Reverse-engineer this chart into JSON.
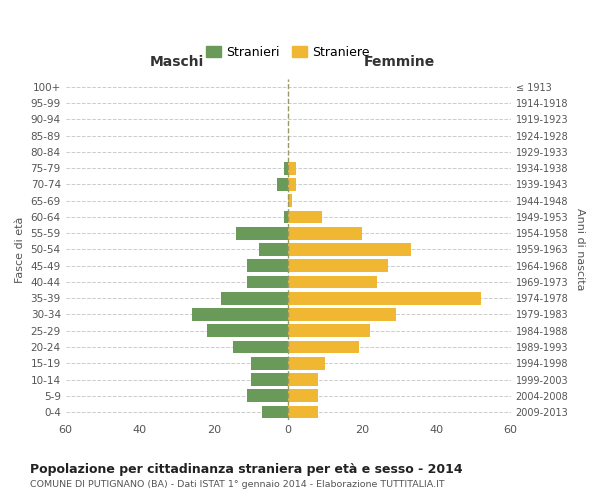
{
  "age_groups": [
    "0-4",
    "5-9",
    "10-14",
    "15-19",
    "20-24",
    "25-29",
    "30-34",
    "35-39",
    "40-44",
    "45-49",
    "50-54",
    "55-59",
    "60-64",
    "65-69",
    "70-74",
    "75-79",
    "80-84",
    "85-89",
    "90-94",
    "95-99",
    "100+"
  ],
  "birth_years": [
    "2009-2013",
    "2004-2008",
    "1999-2003",
    "1994-1998",
    "1989-1993",
    "1984-1988",
    "1979-1983",
    "1974-1978",
    "1969-1973",
    "1964-1968",
    "1959-1963",
    "1954-1958",
    "1949-1953",
    "1944-1948",
    "1939-1943",
    "1934-1938",
    "1929-1933",
    "1924-1928",
    "1919-1923",
    "1914-1918",
    "≤ 1913"
  ],
  "maschi": [
    7,
    11,
    10,
    10,
    15,
    22,
    26,
    18,
    11,
    11,
    8,
    14,
    1,
    0,
    3,
    1,
    0,
    0,
    0,
    0,
    0
  ],
  "femmine": [
    8,
    8,
    8,
    10,
    19,
    22,
    29,
    52,
    24,
    27,
    33,
    20,
    9,
    1,
    2,
    2,
    0,
    0,
    0,
    0,
    0
  ],
  "maschi_color": "#6a9a5a",
  "femmine_color": "#f0b832",
  "title": "Popolazione per cittadinanza straniera per età e sesso - 2014",
  "subtitle": "COMUNE DI PUTIGNANO (BA) - Dati ISTAT 1° gennaio 2014 - Elaborazione TUTTITALIA.IT",
  "legend_maschi": "Stranieri",
  "legend_femmine": "Straniere",
  "xlabel_left": "Maschi",
  "xlabel_right": "Femmine",
  "ylabel_left": "Fasce di età",
  "ylabel_right": "Anni di nascita",
  "xlim": 60,
  "background_color": "#ffffff",
  "grid_color": "#cccccc"
}
